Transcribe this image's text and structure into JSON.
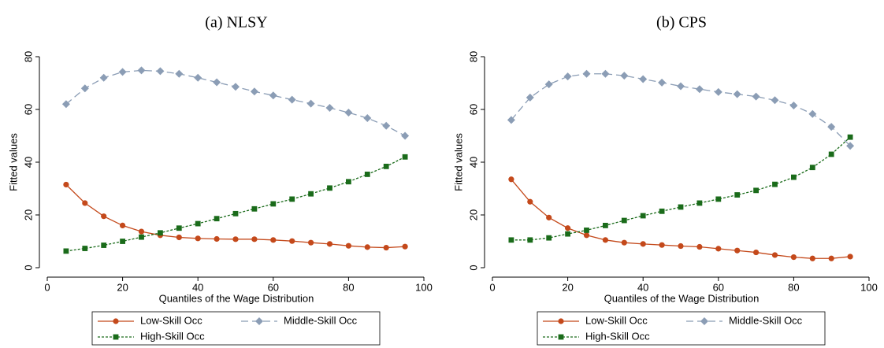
{
  "chart_data": [
    {
      "type": "line",
      "title": "(a) NLSY",
      "xlabel": "Quantiles of the Wage Distribution",
      "ylabel": "Fitted values",
      "x": [
        5,
        10,
        15,
        20,
        25,
        30,
        35,
        40,
        45,
        50,
        55,
        60,
        65,
        70,
        75,
        80,
        85,
        90,
        95
      ],
      "xlim": [
        0,
        100
      ],
      "xticks": [
        0,
        20,
        40,
        60,
        80,
        100
      ],
      "ylim": [
        0,
        80
      ],
      "yticks": [
        0,
        20,
        40,
        60,
        80
      ],
      "series": [
        {
          "name": "Low-Skill Occ",
          "color": "#c4491b",
          "marker": "circle",
          "dash": "solid",
          "values": [
            31.5,
            24.5,
            19.5,
            16,
            13.7,
            12.3,
            11.5,
            11.1,
            10.9,
            10.8,
            10.8,
            10.5,
            10.1,
            9.5,
            9,
            8.3,
            7.8,
            7.6,
            8
          ]
        },
        {
          "name": "Middle-Skill Occ",
          "color": "#8b9db5",
          "marker": "diamond",
          "dash": "longdash",
          "values": [
            62,
            68,
            72,
            74.2,
            74.8,
            74.5,
            73.5,
            72,
            70.3,
            68.6,
            66.8,
            65.3,
            63.7,
            62.2,
            60.6,
            58.8,
            56.7,
            53.8,
            50
          ]
        },
        {
          "name": "High-Skill Occ",
          "color": "#1a6b1a",
          "marker": "square",
          "dash": "shortdash",
          "values": [
            6.3,
            7.3,
            8.5,
            10,
            11.6,
            13.2,
            15,
            16.7,
            18.6,
            20.5,
            22.3,
            24.2,
            26,
            28,
            30.2,
            32.6,
            35.4,
            38.4,
            42
          ]
        }
      ]
    },
    {
      "type": "line",
      "title": "(b) CPS",
      "xlabel": "Quantiles of the Wage Distribution",
      "ylabel": "Fitted values",
      "x": [
        5,
        10,
        15,
        20,
        25,
        30,
        35,
        40,
        45,
        50,
        55,
        60,
        65,
        70,
        75,
        80,
        85,
        90,
        95
      ],
      "xlim": [
        0,
        100
      ],
      "xticks": [
        0,
        20,
        40,
        60,
        80,
        100
      ],
      "ylim": [
        0,
        80
      ],
      "yticks": [
        0,
        20,
        40,
        60,
        80
      ],
      "series": [
        {
          "name": "Low-Skill Occ",
          "color": "#c4491b",
          "marker": "circle",
          "dash": "solid",
          "values": [
            33.5,
            25,
            19,
            15,
            12.3,
            10.5,
            9.5,
            9,
            8.6,
            8.2,
            7.9,
            7.2,
            6.5,
            5.8,
            4.8,
            4,
            3.5,
            3.5,
            4.2
          ]
        },
        {
          "name": "Middle-Skill Occ",
          "color": "#8b9db5",
          "marker": "diamond",
          "dash": "longdash",
          "values": [
            56,
            64.5,
            69.5,
            72.5,
            73.5,
            73.5,
            72.8,
            71.5,
            70.2,
            68.8,
            67.7,
            66.6,
            65.8,
            64.9,
            63.5,
            61.5,
            58.3,
            53.4,
            46.2
          ]
        },
        {
          "name": "High-Skill Occ",
          "color": "#1a6b1a",
          "marker": "square",
          "dash": "shortdash",
          "values": [
            10.5,
            10.5,
            11.3,
            12.8,
            14.2,
            16,
            17.9,
            19.7,
            21.4,
            23,
            24.5,
            26,
            27.6,
            29.3,
            31.6,
            34.3,
            38,
            43,
            49.5
          ]
        }
      ]
    }
  ]
}
